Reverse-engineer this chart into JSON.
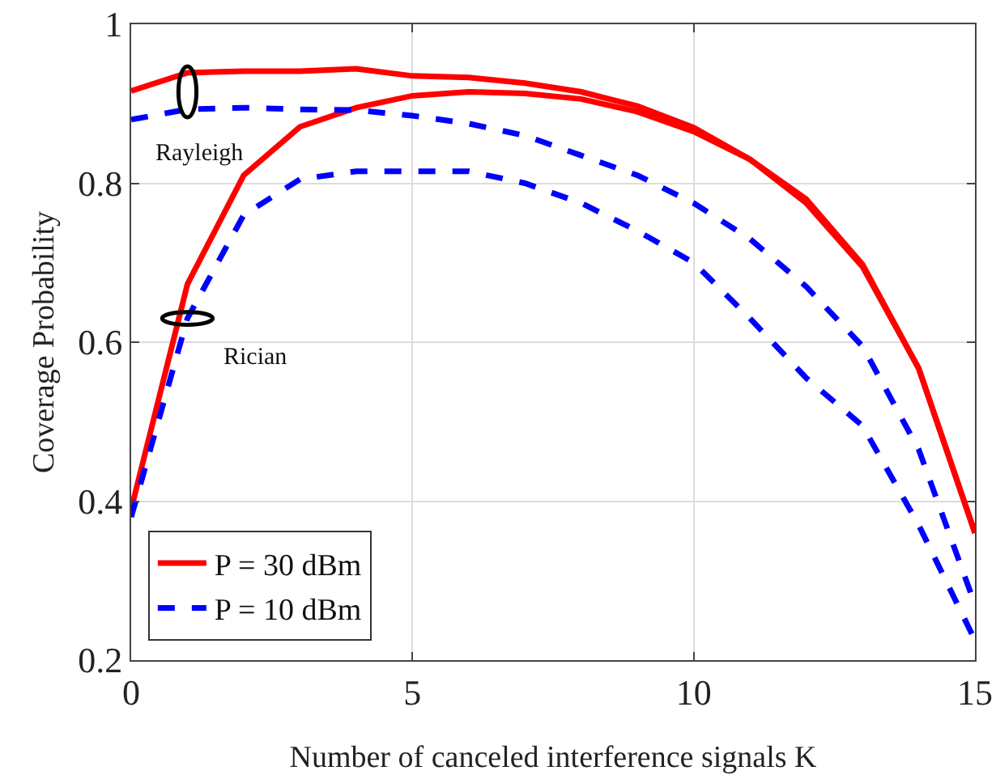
{
  "chart_data": {
    "type": "line",
    "xlabel": "Number of canceled interference signals K",
    "ylabel": "Coverage Probability",
    "x": [
      0,
      1,
      2,
      3,
      4,
      5,
      6,
      7,
      8,
      9,
      10,
      11,
      12,
      13,
      14,
      15
    ],
    "xlim": [
      0,
      15
    ],
    "xticks": [
      0,
      5,
      10,
      15
    ],
    "ylim": [
      0.2,
      1
    ],
    "yticks": [
      0.2,
      0.4,
      0.6,
      0.8,
      1
    ],
    "grid": true,
    "legend": "bottom left",
    "marker": "none",
    "series": [
      {
        "color": "#ff0000",
        "line_style": "solid",
        "values": [
          0.916,
          0.939,
          0.941,
          0.941,
          0.944,
          0.935,
          0.933,
          0.926,
          0.915,
          0.897,
          0.87,
          0.83,
          0.78,
          0.698,
          0.567,
          0.36
        ]
      },
      {
        "name": "P = 30 dBm",
        "color": "#ff0000",
        "line_style": "solid",
        "values": [
          0.39,
          0.673,
          0.81,
          0.871,
          0.895,
          0.91,
          0.915,
          0.913,
          0.906,
          0.89,
          0.865,
          0.83,
          0.775,
          0.695,
          0.567,
          0.36
        ]
      },
      {
        "color": "#0000ff",
        "line_style": "dashed",
        "values": [
          0.88,
          0.893,
          0.895,
          0.893,
          0.892,
          0.885,
          0.875,
          0.86,
          0.835,
          0.81,
          0.775,
          0.73,
          0.67,
          0.595,
          0.465,
          0.27
        ]
      },
      {
        "name": "P = 10 dBm",
        "color": "#0000ff",
        "line_style": "dashed",
        "values": [
          0.38,
          0.63,
          0.76,
          0.805,
          0.815,
          0.815,
          0.815,
          0.8,
          0.775,
          0.74,
          0.7,
          0.63,
          0.555,
          0.495,
          0.37,
          0.225
        ]
      }
    ],
    "annotations": [
      {
        "text": "Rayleigh",
        "x": 1,
        "y": 0.915
      },
      {
        "text": "Rician",
        "x": 1,
        "y": 0.63
      }
    ]
  }
}
